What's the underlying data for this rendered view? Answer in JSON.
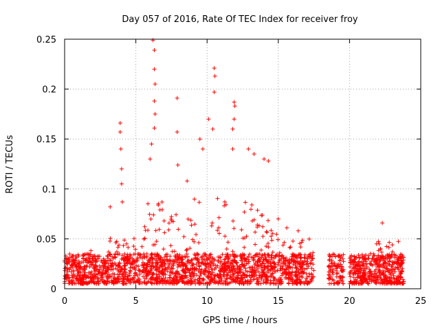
{
  "chart_data": {
    "type": "scatter",
    "title": "Day 057 of 2016, Rate Of TEC Index for receiver froy",
    "xlabel": "GPS time / hours",
    "ylabel": "ROTI / TECUs",
    "xlim": [
      0,
      25
    ],
    "ylim": [
      0,
      0.25
    ],
    "xticks": [
      0,
      5,
      10,
      15,
      20,
      25
    ],
    "yticks": [
      0,
      0.05,
      0.1,
      0.15,
      0.2,
      0.25
    ],
    "xtick_labels": [
      "0",
      "5",
      "10",
      "15",
      "20",
      "25"
    ],
    "ytick_labels": [
      "0",
      "0.05",
      "0.1",
      "0.15",
      "0.2",
      "0.25"
    ],
    "grid": true,
    "marker": "+",
    "marker_color": "#ff0000",
    "data_gaps_hours": [
      [
        17.5,
        18.5
      ],
      [
        19.6,
        20.0
      ]
    ],
    "series": [
      {
        "name": "ROTI",
        "color": "#ff0000",
        "baseline_band": [
          0.005,
          0.035
        ],
        "highlighted_points": [
          {
            "x": 3.2,
            "y": 0.082
          },
          {
            "x": 3.9,
            "y": 0.166
          },
          {
            "x": 3.9,
            "y": 0.157
          },
          {
            "x": 3.95,
            "y": 0.14
          },
          {
            "x": 4.0,
            "y": 0.12
          },
          {
            "x": 4.0,
            "y": 0.105
          },
          {
            "x": 4.05,
            "y": 0.087
          },
          {
            "x": 6.2,
            "y": 0.249
          },
          {
            "x": 6.3,
            "y": 0.239
          },
          {
            "x": 6.3,
            "y": 0.22
          },
          {
            "x": 6.35,
            "y": 0.205
          },
          {
            "x": 6.3,
            "y": 0.188
          },
          {
            "x": 6.35,
            "y": 0.175
          },
          {
            "x": 6.3,
            "y": 0.161
          },
          {
            "x": 6.1,
            "y": 0.145
          },
          {
            "x": 6.0,
            "y": 0.13
          },
          {
            "x": 7.9,
            "y": 0.191
          },
          {
            "x": 7.9,
            "y": 0.157
          },
          {
            "x": 7.95,
            "y": 0.124
          },
          {
            "x": 8.6,
            "y": 0.108
          },
          {
            "x": 9.5,
            "y": 0.15
          },
          {
            "x": 9.7,
            "y": 0.14
          },
          {
            "x": 10.1,
            "y": 0.17
          },
          {
            "x": 10.5,
            "y": 0.221
          },
          {
            "x": 10.55,
            "y": 0.213
          },
          {
            "x": 10.5,
            "y": 0.197
          },
          {
            "x": 10.4,
            "y": 0.16
          },
          {
            "x": 11.9,
            "y": 0.187
          },
          {
            "x": 11.95,
            "y": 0.183
          },
          {
            "x": 11.9,
            "y": 0.17
          },
          {
            "x": 11.8,
            "y": 0.16
          },
          {
            "x": 11.8,
            "y": 0.14
          },
          {
            "x": 12.9,
            "y": 0.14
          },
          {
            "x": 13.3,
            "y": 0.135
          },
          {
            "x": 14.0,
            "y": 0.13
          },
          {
            "x": 14.3,
            "y": 0.128
          },
          {
            "x": 15.6,
            "y": 0.061
          },
          {
            "x": 16.4,
            "y": 0.058
          },
          {
            "x": 21.9,
            "y": 0.045
          },
          {
            "x": 22.3,
            "y": 0.066
          },
          {
            "x": 23.0,
            "y": 0.044
          }
        ]
      }
    ]
  }
}
